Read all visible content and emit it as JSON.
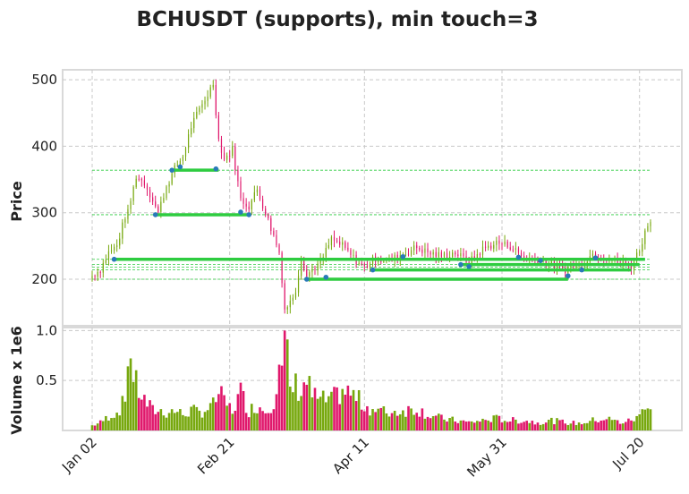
{
  "chart_data": {
    "type": "candlestick",
    "title": "BCHUSDT (supports), min touch=3",
    "price_panel": {
      "ylabel": "Price",
      "yticks": [
        200,
        300,
        400,
        500
      ],
      "ylim": [
        130,
        515
      ],
      "grid": true
    },
    "volume_panel": {
      "ylabel": "Volume x 1e6",
      "yticks": [
        0.5,
        1.0
      ],
      "yticklabels": [
        "0.5",
        "1.0"
      ],
      "ylim": [
        0,
        1.03
      ],
      "grid": true
    },
    "x_axis": {
      "start_date": "Jan 02",
      "days": 203,
      "ticks": [
        {
          "day": 0,
          "label": "Jan 02"
        },
        {
          "day": 50,
          "label": "Feb 21"
        },
        {
          "day": 99,
          "label": "Apr 11"
        },
        {
          "day": 149,
          "label": "May 31"
        },
        {
          "day": 199,
          "label": "Jul 20"
        }
      ]
    },
    "colors": {
      "up": "#77a80e",
      "down": "#e0186c",
      "support": "#2ecc40",
      "touch": "#2a7ab8"
    },
    "support_lines": [
      {
        "price": 364,
        "start_day": 29,
        "end_day": 46
      },
      {
        "price": 297,
        "start_day": 23,
        "end_day": 57
      },
      {
        "price": 230,
        "start_day": 8,
        "end_day": 201
      },
      {
        "price": 222,
        "start_day": 134,
        "end_day": 199
      },
      {
        "price": 214,
        "start_day": 102,
        "end_day": 196
      },
      {
        "price": 200,
        "start_day": 78,
        "end_day": 173
      }
    ],
    "dashed_levels": [
      364,
      297,
      230,
      222,
      218,
      214,
      200
    ],
    "touch_points": [
      {
        "day": 29,
        "price": 364
      },
      {
        "day": 32,
        "price": 369
      },
      {
        "day": 45,
        "price": 366
      },
      {
        "day": 23,
        "price": 297
      },
      {
        "day": 54,
        "price": 301
      },
      {
        "day": 57,
        "price": 297
      },
      {
        "day": 8,
        "price": 230
      },
      {
        "day": 113,
        "price": 234
      },
      {
        "day": 155,
        "price": 233
      },
      {
        "day": 134,
        "price": 222
      },
      {
        "day": 163,
        "price": 228
      },
      {
        "day": 183,
        "price": 232
      },
      {
        "day": 102,
        "price": 214
      },
      {
        "day": 137,
        "price": 219
      },
      {
        "day": 178,
        "price": 214
      },
      {
        "day": 78,
        "price": 200
      },
      {
        "day": 85,
        "price": 203
      },
      {
        "day": 173,
        "price": 205
      }
    ],
    "anchors": [
      [
        0,
        205,
        0.05
      ],
      [
        3,
        215,
        0.08
      ],
      [
        6,
        240,
        0.14
      ],
      [
        9,
        250,
        0.18
      ],
      [
        12,
        295,
        0.3
      ],
      [
        13,
        300,
        0.82
      ],
      [
        16,
        355,
        0.45
      ],
      [
        19,
        345,
        0.3
      ],
      [
        22,
        320,
        0.2
      ],
      [
        24,
        300,
        0.2
      ],
      [
        27,
        340,
        0.18
      ],
      [
        30,
        366,
        0.2
      ],
      [
        33,
        385,
        0.16
      ],
      [
        36,
        430,
        0.2
      ],
      [
        39,
        455,
        0.18
      ],
      [
        42,
        478,
        0.22
      ],
      [
        44,
        495,
        0.25
      ],
      [
        46,
        410,
        0.38
      ],
      [
        48,
        380,
        0.28
      ],
      [
        51,
        395,
        0.2
      ],
      [
        54,
        320,
        0.38
      ],
      [
        57,
        310,
        0.2
      ],
      [
        60,
        335,
        0.25
      ],
      [
        63,
        300,
        0.2
      ],
      [
        66,
        265,
        0.3
      ],
      [
        68,
        240,
        0.7
      ],
      [
        69,
        200,
        0.55
      ],
      [
        70,
        155,
        1.0
      ],
      [
        72,
        165,
        0.4
      ],
      [
        74,
        185,
        0.45
      ],
      [
        76,
        235,
        0.4
      ],
      [
        78,
        205,
        0.5
      ],
      [
        80,
        215,
        0.35
      ],
      [
        83,
        225,
        0.3
      ],
      [
        87,
        260,
        0.3
      ],
      [
        91,
        250,
        0.4
      ],
      [
        95,
        232,
        0.35
      ],
      [
        99,
        218,
        0.25
      ],
      [
        103,
        232,
        0.2
      ],
      [
        108,
        228,
        0.18
      ],
      [
        113,
        238,
        0.2
      ],
      [
        118,
        248,
        0.22
      ],
      [
        122,
        240,
        0.16
      ],
      [
        127,
        235,
        0.12
      ],
      [
        132,
        240,
        0.1
      ],
      [
        137,
        225,
        0.08
      ],
      [
        142,
        245,
        0.1
      ],
      [
        147,
        255,
        0.12
      ],
      [
        152,
        250,
        0.1
      ],
      [
        157,
        232,
        0.1
      ],
      [
        162,
        230,
        0.08
      ],
      [
        167,
        222,
        0.1
      ],
      [
        172,
        215,
        0.08
      ],
      [
        177,
        222,
        0.07
      ],
      [
        182,
        238,
        0.1
      ],
      [
        187,
        232,
        0.12
      ],
      [
        192,
        225,
        0.08
      ],
      [
        196,
        220,
        0.1
      ],
      [
        199,
        245,
        0.14
      ],
      [
        201,
        270,
        0.3
      ],
      [
        203,
        292,
        0.22
      ]
    ]
  }
}
